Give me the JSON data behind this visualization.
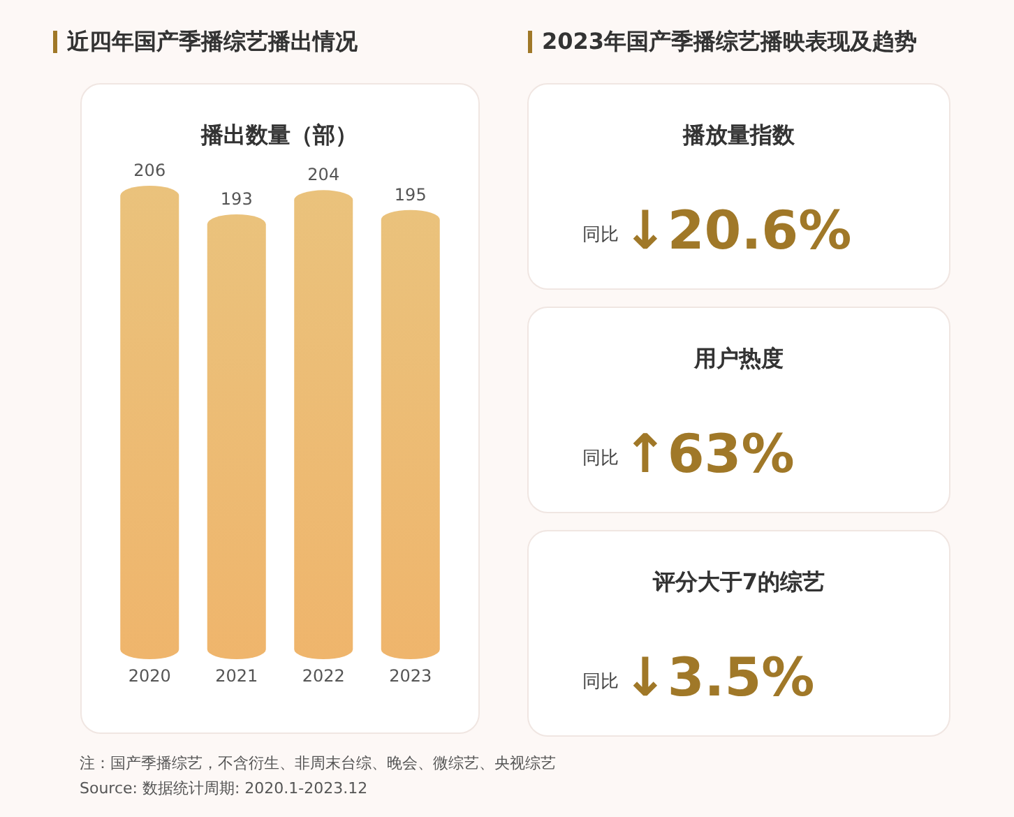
{
  "chart_data": [
    {
      "type": "bar",
      "title": "近四年国产季播综艺播出情况",
      "subtitle": "播出数量（部）",
      "categories": [
        "2020",
        "2021",
        "2022",
        "2023"
      ],
      "values": [
        206,
        193,
        204,
        195
      ],
      "color": "#efb56c",
      "data_labels": true,
      "annotations": [
        "注：国产季播综艺，不含衍生、非周末台综、晚会、微综艺、央视综艺",
        "Source: 数据统计周期: 2020.1-2023.12"
      ]
    },
    {
      "type": "other",
      "title": "2023年国产季播综艺播映表现及趋势"
    },
    {
      "type": "other",
      "title": "播放量指数",
      "annotations": [
        "同比",
        "↓20.6%"
      ]
    },
    {
      "type": "other",
      "title": "用户热度",
      "annotations": [
        "同比",
        "↑63%"
      ]
    },
    {
      "type": "other",
      "title": "评分大于7的综艺",
      "annotations": [
        "同比",
        "↓3.5%"
      ]
    }
  ]
}
